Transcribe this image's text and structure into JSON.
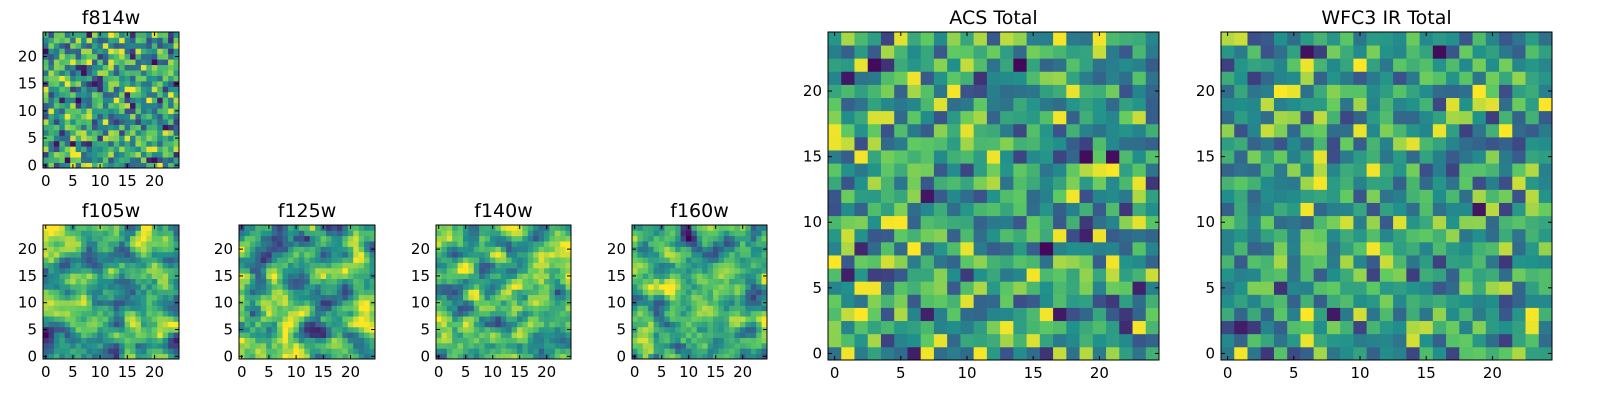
{
  "figure": {
    "background": "#ffffff",
    "colormap": "viridis"
  },
  "chart_data": [
    {
      "type": "heatmap",
      "title": "f814w",
      "grid_size": 25,
      "x_ticks": [
        0,
        5,
        10,
        15,
        20
      ],
      "y_ticks": [
        0,
        5,
        10,
        15,
        20
      ],
      "xlim": [
        -0.5,
        24.5
      ],
      "ylim": [
        -0.5,
        24.5
      ],
      "seed": 11,
      "contrast": 0.6,
      "smooth": 0
    },
    {
      "type": "heatmap",
      "title": "f105w",
      "grid_size": 25,
      "x_ticks": [
        0,
        5,
        10,
        15,
        20
      ],
      "y_ticks": [
        0,
        5,
        10,
        15,
        20
      ],
      "xlim": [
        -0.5,
        24.5
      ],
      "ylim": [
        -0.5,
        24.5
      ],
      "seed": 23,
      "contrast": 0.6,
      "smooth": 1
    },
    {
      "type": "heatmap",
      "title": "f125w",
      "grid_size": 25,
      "x_ticks": [
        0,
        5,
        10,
        15,
        20
      ],
      "y_ticks": [
        0,
        5,
        10,
        15,
        20
      ],
      "xlim": [
        -0.5,
        24.5
      ],
      "ylim": [
        -0.5,
        24.5
      ],
      "seed": 37,
      "contrast": 0.6,
      "smooth": 1
    },
    {
      "type": "heatmap",
      "title": "f140w",
      "grid_size": 25,
      "x_ticks": [
        0,
        5,
        10,
        15,
        20
      ],
      "y_ticks": [
        0,
        5,
        10,
        15,
        20
      ],
      "xlim": [
        -0.5,
        24.5
      ],
      "ylim": [
        -0.5,
        24.5
      ],
      "seed": 41,
      "contrast": 0.6,
      "smooth": 1
    },
    {
      "type": "heatmap",
      "title": "f160w",
      "grid_size": 25,
      "x_ticks": [
        0,
        5,
        10,
        15,
        20
      ],
      "y_ticks": [
        0,
        5,
        10,
        15,
        20
      ],
      "xlim": [
        -0.5,
        24.5
      ],
      "ylim": [
        -0.5,
        24.5
      ],
      "seed": 53,
      "contrast": 0.6,
      "smooth": 1
    },
    {
      "type": "heatmap",
      "title": "ACS Total",
      "grid_size": 25,
      "x_ticks": [
        0,
        5,
        10,
        15,
        20
      ],
      "y_ticks": [
        0,
        5,
        10,
        15,
        20
      ],
      "xlim": [
        -0.5,
        24.5
      ],
      "ylim": [
        -0.5,
        24.5
      ],
      "seed": 67,
      "contrast": 0.55,
      "smooth": 0
    },
    {
      "type": "heatmap",
      "title": "WFC3 IR Total",
      "grid_size": 25,
      "x_ticks": [
        0,
        5,
        10,
        15,
        20
      ],
      "y_ticks": [
        0,
        5,
        10,
        15,
        20
      ],
      "xlim": [
        -0.5,
        24.5
      ],
      "ylim": [
        -0.5,
        24.5
      ],
      "seed": 79,
      "contrast": 0.55,
      "smooth": 0
    }
  ]
}
